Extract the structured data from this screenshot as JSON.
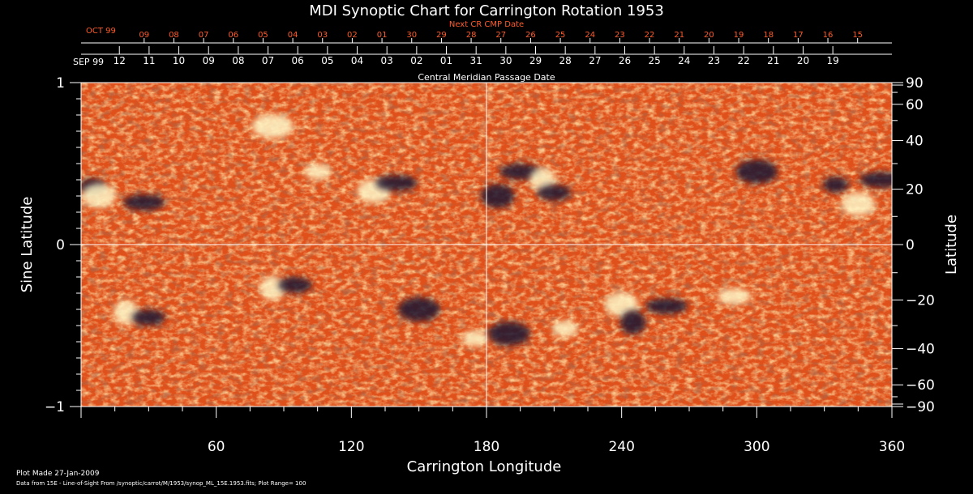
{
  "chart_data": {
    "type": "heatmap",
    "title": "MDI Synoptic Chart for Carrington Rotation 1953",
    "xlabel": "Carrington Longitude",
    "ylabel_left": "Sine Latitude",
    "ylabel_right": "Latitude",
    "xlim": [
      0,
      360
    ],
    "ylim": [
      -1,
      1
    ],
    "x_ticks": [
      "60",
      "120",
      "180",
      "240",
      "300",
      "360"
    ],
    "x_tick_values": [
      60,
      120,
      180,
      240,
      300,
      360
    ],
    "left_y_ticks": [
      {
        "label": "1",
        "value": 1
      },
      {
        "label": "0",
        "value": 0
      },
      {
        "label": "−1",
        "value": -1
      }
    ],
    "right_y_ticks": [
      {
        "label": "90",
        "deg": 90
      },
      {
        "label": "60",
        "deg": 60
      },
      {
        "label": "40",
        "deg": 40
      },
      {
        "label": "20",
        "deg": 20
      },
      {
        "label": "0",
        "deg": 0
      },
      {
        "label": "−20",
        "deg": -20
      },
      {
        "label": "−40",
        "deg": -40
      },
      {
        "label": "−60",
        "deg": -60
      },
      {
        "label": "−90",
        "deg": -90
      }
    ],
    "top_axis_label": "Central Meridian Passage Date",
    "top_axis_month_labels": [
      "SEP 99"
    ],
    "top_axis_dates": [
      "12",
      "11",
      "10",
      "09",
      "08",
      "07",
      "06",
      "05",
      "04",
      "03",
      "02",
      "01",
      "31",
      "30",
      "29",
      "28",
      "27",
      "26",
      "25",
      "24",
      "23",
      "22",
      "21",
      "20",
      "19"
    ],
    "next_axis_label": "Next CR CMP Date",
    "next_axis_month_labels": [
      "OCT 99"
    ],
    "next_axis_dates": [
      "09",
      "08",
      "07",
      "06",
      "05",
      "04",
      "03",
      "02",
      "01",
      "30",
      "29",
      "28",
      "27",
      "26",
      "25",
      "24",
      "23",
      "22",
      "21",
      "20",
      "19",
      "18",
      "17",
      "16",
      "15"
    ],
    "grid_lines": {
      "vertical_at_longitude": 180,
      "horizontal_at_sine_latitude": 0
    },
    "colors": {
      "background": "#000000",
      "field_base": "#e0501a",
      "positive_polarity": "#fff7c8",
      "negative_polarity": "#1a1230",
      "next_axis_text": "#ff5a2a",
      "text": "#ffffff"
    },
    "active_regions": [
      {
        "lon": 5,
        "sinlat": 0.36,
        "polarity": "negative"
      },
      {
        "lon": 8,
        "sinlat": 0.3,
        "polarity": "positive"
      },
      {
        "lon": 28,
        "sinlat": 0.26,
        "polarity": "negative"
      },
      {
        "lon": 20,
        "sinlat": -0.42,
        "polarity": "positive"
      },
      {
        "lon": 30,
        "sinlat": -0.45,
        "polarity": "negative"
      },
      {
        "lon": 85,
        "sinlat": 0.73,
        "polarity": "positive"
      },
      {
        "lon": 105,
        "sinlat": 0.45,
        "polarity": "positive"
      },
      {
        "lon": 130,
        "sinlat": 0.33,
        "polarity": "positive"
      },
      {
        "lon": 140,
        "sinlat": 0.38,
        "polarity": "negative"
      },
      {
        "lon": 85,
        "sinlat": -0.27,
        "polarity": "positive"
      },
      {
        "lon": 95,
        "sinlat": -0.25,
        "polarity": "negative"
      },
      {
        "lon": 150,
        "sinlat": -0.4,
        "polarity": "negative"
      },
      {
        "lon": 175,
        "sinlat": -0.58,
        "polarity": "positive"
      },
      {
        "lon": 185,
        "sinlat": 0.3,
        "polarity": "negative"
      },
      {
        "lon": 195,
        "sinlat": 0.45,
        "polarity": "negative"
      },
      {
        "lon": 205,
        "sinlat": 0.4,
        "polarity": "positive"
      },
      {
        "lon": 210,
        "sinlat": 0.32,
        "polarity": "negative"
      },
      {
        "lon": 190,
        "sinlat": -0.55,
        "polarity": "negative"
      },
      {
        "lon": 215,
        "sinlat": -0.52,
        "polarity": "positive"
      },
      {
        "lon": 240,
        "sinlat": -0.37,
        "polarity": "positive"
      },
      {
        "lon": 260,
        "sinlat": -0.38,
        "polarity": "negative"
      },
      {
        "lon": 245,
        "sinlat": -0.48,
        "polarity": "negative"
      },
      {
        "lon": 290,
        "sinlat": -0.32,
        "polarity": "positive"
      },
      {
        "lon": 300,
        "sinlat": 0.45,
        "polarity": "negative"
      },
      {
        "lon": 335,
        "sinlat": 0.37,
        "polarity": "negative"
      },
      {
        "lon": 345,
        "sinlat": 0.25,
        "polarity": "positive"
      },
      {
        "lon": 355,
        "sinlat": 0.4,
        "polarity": "negative"
      }
    ]
  },
  "footer": {
    "plot_made": "Plot Made 27-Jan-2009",
    "data_source": "Data from 15E - Line-of-Sight From /synoptic/carrot/M/1953/synop_ML_15E.1953.fits; Plot Range= 100"
  }
}
